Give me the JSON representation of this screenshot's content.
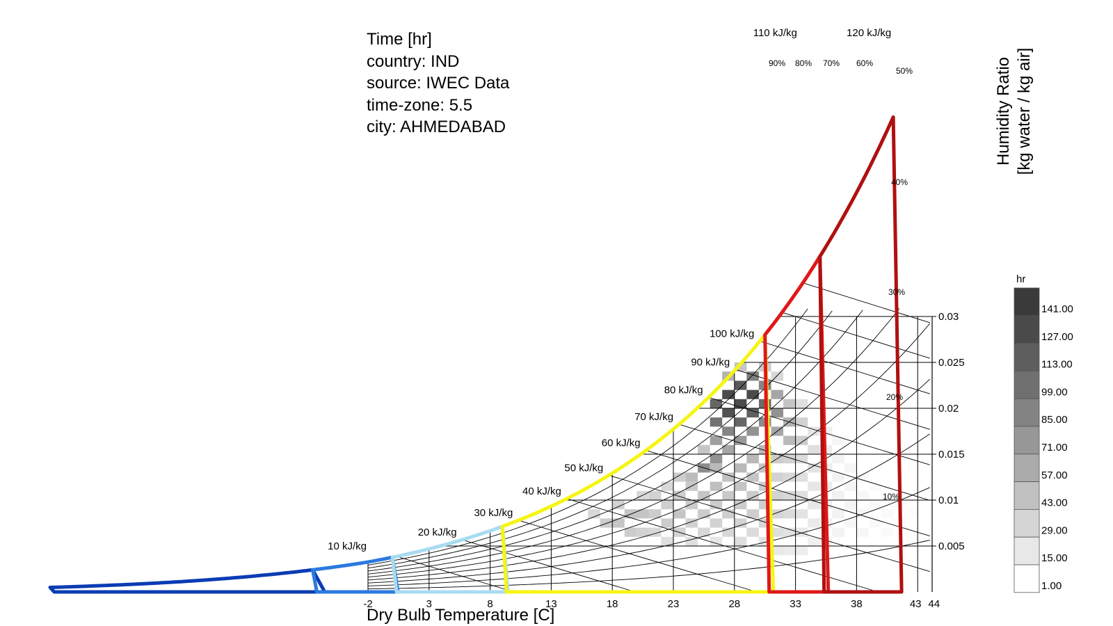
{
  "info": {
    "lines": [
      "Time [hr]",
      "country: IND",
      "source: IWEC Data",
      "time-zone: 5.5",
      "city: AHMEDABAD"
    ]
  },
  "chart_data": {
    "type": "heatmap",
    "title": "",
    "xlabel": "Dry Bulb Temperature [C]",
    "ylabel": "Humidity Ratio [kg water / kg air]",
    "xlim": [
      -2,
      44
    ],
    "ylim": [
      0,
      0.03
    ],
    "x_ticks": [
      "-2",
      "3",
      "8",
      "13",
      "18",
      "23",
      "28",
      "33",
      "38",
      "43",
      "44"
    ],
    "x_tick_values": [
      -2,
      3,
      8,
      13,
      18,
      23,
      28,
      33,
      38,
      43,
      44
    ],
    "y_ticks": [
      "0.005",
      "0.01",
      "0.015",
      "0.02",
      "0.025",
      "0.03"
    ],
    "y_tick_values": [
      0.005,
      0.01,
      0.015,
      0.02,
      0.025,
      0.03
    ],
    "enthalpy_labels": [
      "10 kJ/kg",
      "20 kJ/kg",
      "30 kJ/kg",
      "40 kJ/kg",
      "50 kJ/kg",
      "60 kJ/kg",
      "70 kJ/kg",
      "80 kJ/kg",
      "90 kJ/kg",
      "100 kJ/kg",
      "110 kJ/kg",
      "120 kJ/kg"
    ],
    "enthalpy_values": [
      10,
      20,
      30,
      40,
      50,
      60,
      70,
      80,
      90,
      100,
      110,
      120
    ],
    "rh_labels": [
      "90%",
      "80%",
      "70%",
      "60%",
      "50%",
      "40%",
      "30%",
      "20%",
      "10%"
    ],
    "rh_values": [
      90,
      80,
      70,
      60,
      50,
      40,
      30,
      20,
      10
    ],
    "grid": true,
    "legend": {
      "title": "hr",
      "labels": [
        "141.00",
        "127.00",
        "113.00",
        "99.00",
        "85.00",
        "71.00",
        "57.00",
        "43.00",
        "29.00",
        "15.00",
        "1.00"
      ],
      "colors": [
        "#3a3a3a",
        "#4a4a4a",
        "#5e5e5e",
        "#707070",
        "#838383",
        "#979797",
        "#ababab",
        "#c0c0c0",
        "#d5d5d5",
        "#e8e8e8",
        "#ffffff"
      ],
      "position": "right"
    },
    "cells": [
      {
        "x": 24,
        "w": 0.012,
        "h": 52
      },
      {
        "x": 25,
        "w": 0.013,
        "h": 90
      },
      {
        "x": 25,
        "w": 0.015,
        "h": 45
      },
      {
        "x": 26,
        "w": 0.014,
        "h": 85
      },
      {
        "x": 26,
        "w": 0.016,
        "h": 75
      },
      {
        "x": 26,
        "w": 0.018,
        "h": 110
      },
      {
        "x": 26,
        "w": 0.02,
        "h": 120
      },
      {
        "x": 27,
        "w": 0.015,
        "h": 70
      },
      {
        "x": 27,
        "w": 0.017,
        "h": 95
      },
      {
        "x": 27,
        "w": 0.019,
        "h": 135
      },
      {
        "x": 27,
        "w": 0.021,
        "h": 141
      },
      {
        "x": 27,
        "w": 0.023,
        "h": 60
      },
      {
        "x": 28,
        "w": 0.016,
        "h": 80
      },
      {
        "x": 28,
        "w": 0.018,
        "h": 120
      },
      {
        "x": 28,
        "w": 0.02,
        "h": 141
      },
      {
        "x": 28,
        "w": 0.022,
        "h": 130
      },
      {
        "x": 28,
        "w": 0.024,
        "h": 45
      },
      {
        "x": 29,
        "w": 0.017,
        "h": 85
      },
      {
        "x": 29,
        "w": 0.019,
        "h": 125
      },
      {
        "x": 29,
        "w": 0.021,
        "h": 141
      },
      {
        "x": 29,
        "w": 0.023,
        "h": 100
      },
      {
        "x": 30,
        "w": 0.018,
        "h": 90
      },
      {
        "x": 30,
        "w": 0.02,
        "h": 115
      },
      {
        "x": 30,
        "w": 0.022,
        "h": 95
      },
      {
        "x": 30,
        "w": 0.024,
        "h": 40
      },
      {
        "x": 31,
        "w": 0.017,
        "h": 70
      },
      {
        "x": 31,
        "w": 0.019,
        "h": 85
      },
      {
        "x": 31,
        "w": 0.021,
        "h": 70
      },
      {
        "x": 31,
        "w": 0.023,
        "h": 30
      },
      {
        "x": 32,
        "w": 0.016,
        "h": 55
      },
      {
        "x": 32,
        "w": 0.018,
        "h": 60
      },
      {
        "x": 32,
        "w": 0.02,
        "h": 45
      },
      {
        "x": 33,
        "w": 0.016,
        "h": 40
      },
      {
        "x": 33,
        "w": 0.018,
        "h": 35
      },
      {
        "x": 33,
        "w": 0.02,
        "h": 25
      },
      {
        "x": 34,
        "w": 0.015,
        "h": 25
      },
      {
        "x": 34,
        "w": 0.017,
        "h": 20
      },
      {
        "x": 35,
        "w": 0.015,
        "h": 15
      },
      {
        "x": 35,
        "w": 0.017,
        "h": 12
      },
      {
        "x": 36,
        "w": 0.016,
        "h": 8
      },
      {
        "x": 16,
        "w": 0.008,
        "h": 30
      },
      {
        "x": 17,
        "w": 0.007,
        "h": 40
      },
      {
        "x": 18,
        "w": 0.007,
        "h": 45
      },
      {
        "x": 18,
        "w": 0.009,
        "h": 35
      },
      {
        "x": 19,
        "w": 0.006,
        "h": 40
      },
      {
        "x": 19,
        "w": 0.008,
        "h": 45
      },
      {
        "x": 20,
        "w": 0.006,
        "h": 35
      },
      {
        "x": 20,
        "w": 0.008,
        "h": 45
      },
      {
        "x": 20,
        "w": 0.01,
        "h": 30
      },
      {
        "x": 21,
        "w": 0.006,
        "h": 30
      },
      {
        "x": 21,
        "w": 0.008,
        "h": 40
      },
      {
        "x": 21,
        "w": 0.01,
        "h": 35
      },
      {
        "x": 22,
        "w": 0.005,
        "h": 25
      },
      {
        "x": 22,
        "w": 0.007,
        "h": 40
      },
      {
        "x": 22,
        "w": 0.009,
        "h": 38
      },
      {
        "x": 22,
        "w": 0.011,
        "h": 30
      },
      {
        "x": 23,
        "w": 0.006,
        "h": 35
      },
      {
        "x": 23,
        "w": 0.008,
        "h": 45
      },
      {
        "x": 23,
        "w": 0.01,
        "h": 40
      },
      {
        "x": 23,
        "w": 0.012,
        "h": 38
      },
      {
        "x": 24,
        "w": 0.005,
        "h": 25
      },
      {
        "x": 24,
        "w": 0.007,
        "h": 35
      },
      {
        "x": 24,
        "w": 0.009,
        "h": 40
      },
      {
        "x": 24,
        "w": 0.011,
        "h": 42
      },
      {
        "x": 25,
        "w": 0.006,
        "h": 30
      },
      {
        "x": 25,
        "w": 0.008,
        "h": 40
      },
      {
        "x": 25,
        "w": 0.01,
        "h": 45
      },
      {
        "x": 26,
        "w": 0.005,
        "h": 20
      },
      {
        "x": 26,
        "w": 0.007,
        "h": 35
      },
      {
        "x": 26,
        "w": 0.009,
        "h": 40
      },
      {
        "x": 26,
        "w": 0.011,
        "h": 50
      },
      {
        "x": 26,
        "w": 0.013,
        "h": 55
      },
      {
        "x": 27,
        "w": 0.006,
        "h": 30
      },
      {
        "x": 27,
        "w": 0.008,
        "h": 38
      },
      {
        "x": 27,
        "w": 0.01,
        "h": 42
      },
      {
        "x": 27,
        "w": 0.012,
        "h": 48
      },
      {
        "x": 28,
        "w": 0.005,
        "h": 25
      },
      {
        "x": 28,
        "w": 0.007,
        "h": 35
      },
      {
        "x": 28,
        "w": 0.009,
        "h": 40
      },
      {
        "x": 28,
        "w": 0.011,
        "h": 45
      },
      {
        "x": 28,
        "w": 0.013,
        "h": 55
      },
      {
        "x": 29,
        "w": 0.006,
        "h": 28
      },
      {
        "x": 29,
        "w": 0.008,
        "h": 38
      },
      {
        "x": 29,
        "w": 0.01,
        "h": 40
      },
      {
        "x": 29,
        "w": 0.012,
        "h": 45
      },
      {
        "x": 29,
        "w": 0.014,
        "h": 55
      },
      {
        "x": 30,
        "w": 0.005,
        "h": 22
      },
      {
        "x": 30,
        "w": 0.007,
        "h": 32
      },
      {
        "x": 30,
        "w": 0.009,
        "h": 38
      },
      {
        "x": 30,
        "w": 0.011,
        "h": 40
      },
      {
        "x": 30,
        "w": 0.013,
        "h": 45
      },
      {
        "x": 30,
        "w": 0.015,
        "h": 55
      },
      {
        "x": 31,
        "w": 0.004,
        "h": 18
      },
      {
        "x": 31,
        "w": 0.006,
        "h": 26
      },
      {
        "x": 31,
        "w": 0.008,
        "h": 32
      },
      {
        "x": 31,
        "w": 0.01,
        "h": 35
      },
      {
        "x": 31,
        "w": 0.012,
        "h": 35
      },
      {
        "x": 31,
        "w": 0.014,
        "h": 40
      },
      {
        "x": 32,
        "w": 0.004,
        "h": 15
      },
      {
        "x": 32,
        "w": 0.006,
        "h": 22
      },
      {
        "x": 32,
        "w": 0.008,
        "h": 28
      },
      {
        "x": 32,
        "w": 0.01,
        "h": 30
      },
      {
        "x": 32,
        "w": 0.012,
        "h": 30
      },
      {
        "x": 32,
        "w": 0.014,
        "h": 35
      },
      {
        "x": 33,
        "w": 0.004,
        "h": 14
      },
      {
        "x": 33,
        "w": 0.006,
        "h": 18
      },
      {
        "x": 33,
        "w": 0.008,
        "h": 22
      },
      {
        "x": 33,
        "w": 0.01,
        "h": 25
      },
      {
        "x": 33,
        "w": 0.012,
        "h": 25
      },
      {
        "x": 33,
        "w": 0.014,
        "h": 28
      },
      {
        "x": 34,
        "w": 0.005,
        "h": 12
      },
      {
        "x": 34,
        "w": 0.007,
        "h": 16
      },
      {
        "x": 34,
        "w": 0.009,
        "h": 18
      },
      {
        "x": 34,
        "w": 0.011,
        "h": 20
      },
      {
        "x": 34,
        "w": 0.013,
        "h": 22
      },
      {
        "x": 35,
        "w": 0.005,
        "h": 10
      },
      {
        "x": 35,
        "w": 0.007,
        "h": 12
      },
      {
        "x": 35,
        "w": 0.009,
        "h": 14
      },
      {
        "x": 35,
        "w": 0.011,
        "h": 15
      },
      {
        "x": 35,
        "w": 0.013,
        "h": 14
      },
      {
        "x": 36,
        "w": 0.006,
        "h": 9
      },
      {
        "x": 36,
        "w": 0.008,
        "h": 10
      },
      {
        "x": 36,
        "w": 0.01,
        "h": 11
      },
      {
        "x": 36,
        "w": 0.012,
        "h": 10
      },
      {
        "x": 36,
        "w": 0.014,
        "h": 9
      },
      {
        "x": 37,
        "w": 0.007,
        "h": 7
      },
      {
        "x": 37,
        "w": 0.009,
        "h": 8
      },
      {
        "x": 37,
        "w": 0.011,
        "h": 8
      },
      {
        "x": 37,
        "w": 0.013,
        "h": 7
      },
      {
        "x": 38,
        "w": 0.006,
        "h": 6
      },
      {
        "x": 38,
        "w": 0.008,
        "h": 6
      },
      {
        "x": 38,
        "w": 0.01,
        "h": 6
      },
      {
        "x": 38,
        "w": 0.012,
        "h": 5
      },
      {
        "x": 39,
        "w": 0.007,
        "h": 5
      },
      {
        "x": 39,
        "w": 0.009,
        "h": 5
      },
      {
        "x": 39,
        "w": 0.011,
        "h": 4
      },
      {
        "x": 40,
        "w": 0.006,
        "h": 4
      },
      {
        "x": 40,
        "w": 0.008,
        "h": 4
      },
      {
        "x": 40,
        "w": 0.01,
        "h": 3
      },
      {
        "x": 41,
        "w": 0.007,
        "h": 3
      },
      {
        "x": 41,
        "w": 0.009,
        "h": 3
      },
      {
        "x": 42,
        "w": 0.006,
        "h": 2
      },
      {
        "x": 42,
        "w": 0.008,
        "h": 2
      }
    ],
    "comfort_zones": [
      {
        "color": "#0a3cb4",
        "t_dry_low": -25,
        "t_dry_high": -6
      },
      {
        "color": "#2a7ae0",
        "t_dry_low": -6,
        "t_dry_high": 0
      },
      {
        "color": "#a8dcf0",
        "t_dry_low": 0,
        "t_dry_high": 9
      },
      {
        "color": "#f5f514",
        "t_dry_low": 9,
        "t_dry_high": 30.5
      },
      {
        "color": "#e01818",
        "t_dry_low": 30.5,
        "t_dry_high": 35
      },
      {
        "color": "#b01010",
        "t_dry_low": 35,
        "t_dry_high": 41
      }
    ]
  }
}
